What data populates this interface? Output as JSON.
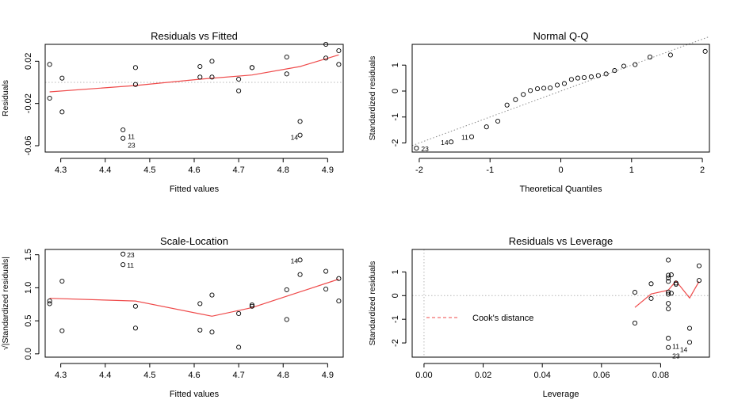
{
  "chart_data": [
    {
      "type": "scatter",
      "title": "Residuals vs Fitted",
      "xlabel": "Fitted values",
      "ylabel": "Residuals",
      "xlim": [
        4.265,
        4.935
      ],
      "ylim": [
        -0.066,
        0.036
      ],
      "xticks": [
        "4.3",
        "4.4",
        "4.5",
        "4.6",
        "4.7",
        "4.8",
        "4.9"
      ],
      "yticks": [
        "-0.06",
        "-0.02",
        "0.02"
      ],
      "points": [
        [
          4.275,
          0.017
        ],
        [
          4.275,
          -0.015
        ],
        [
          4.303,
          0.004
        ],
        [
          4.303,
          -0.028
        ],
        [
          4.44,
          -0.045
        ],
        [
          4.44,
          -0.053
        ],
        [
          4.468,
          0.014
        ],
        [
          4.468,
          -0.002
        ],
        [
          4.613,
          0.015
        ],
        [
          4.613,
          0.005
        ],
        [
          4.64,
          0.02
        ],
        [
          4.64,
          0.005
        ],
        [
          4.7,
          0.003
        ],
        [
          4.7,
          -0.008
        ],
        [
          4.73,
          0.014
        ],
        [
          4.73,
          0.014
        ],
        [
          4.808,
          0.024
        ],
        [
          4.808,
          0.008
        ],
        [
          4.838,
          -0.037
        ],
        [
          4.838,
          -0.05
        ],
        [
          4.896,
          0.036
        ],
        [
          4.896,
          0.023
        ],
        [
          4.925,
          0.03
        ],
        [
          4.925,
          0.017
        ]
      ],
      "labels": [
        {
          "text": "11",
          "x": 4.44,
          "y": -0.053
        },
        {
          "text": "23",
          "x": 4.44,
          "y": -0.053
        },
        {
          "text": "14",
          "x": 4.838,
          "y": -0.05
        }
      ],
      "smooth": [
        [
          4.275,
          -0.009
        ],
        [
          4.468,
          -0.003
        ],
        [
          4.613,
          0.003
        ],
        [
          4.73,
          0.007
        ],
        [
          4.838,
          0.015
        ],
        [
          4.925,
          0.026
        ]
      ],
      "reference_line": 0
    },
    {
      "type": "scatter",
      "title": "Normal Q-Q",
      "xlabel": "Theoretical Quantiles",
      "ylabel": "Standardized residuals",
      "xlim": [
        -2.1,
        2.1
      ],
      "ylim": [
        -2.35,
        1.8
      ],
      "xticks": [
        "-2",
        "-1",
        "0",
        "1",
        "2"
      ],
      "yticks": [
        "-2",
        "-1",
        "0",
        "1"
      ],
      "points": [
        [
          -2.04,
          -2.2
        ],
        [
          -1.55,
          -1.96
        ],
        [
          -1.26,
          -1.76
        ],
        [
          -1.05,
          -1.38
        ],
        [
          -0.89,
          -1.16
        ],
        [
          -0.76,
          -0.54
        ],
        [
          -0.64,
          -0.33
        ],
        [
          -0.53,
          -0.13
        ],
        [
          -0.43,
          0.02
        ],
        [
          -0.33,
          0.09
        ],
        [
          -0.24,
          0.11
        ],
        [
          -0.15,
          0.12
        ],
        [
          -0.05,
          0.23
        ],
        [
          0.05,
          0.29
        ],
        [
          0.15,
          0.45
        ],
        [
          0.24,
          0.5
        ],
        [
          0.33,
          0.52
        ],
        [
          0.43,
          0.55
        ],
        [
          0.53,
          0.6
        ],
        [
          0.64,
          0.66
        ],
        [
          0.76,
          0.79
        ],
        [
          0.89,
          0.96
        ],
        [
          1.05,
          1.02
        ],
        [
          1.26,
          1.31
        ],
        [
          1.55,
          1.39
        ],
        [
          2.04,
          1.53
        ]
      ],
      "labels": [
        {
          "text": "23",
          "x": -2.04,
          "y": -2.2
        },
        {
          "text": "14",
          "x": -1.55,
          "y": -1.96
        },
        {
          "text": "11",
          "x": -1.26,
          "y": -1.76
        }
      ],
      "reference_line": {
        "intercept": 0,
        "slope": 1
      }
    },
    {
      "type": "scatter",
      "title": "Scale-Location",
      "xlabel": "Fitted values",
      "ylabel": "√|Standardized residuals|",
      "xlim": [
        4.265,
        4.935
      ],
      "ylim": [
        -0.05,
        1.58
      ],
      "xticks": [
        "4.3",
        "4.4",
        "4.5",
        "4.6",
        "4.7",
        "4.8",
        "4.9"
      ],
      "yticks": [
        "0.0",
        "0.5",
        "1.0",
        "1.5"
      ],
      "points": [
        [
          4.275,
          0.8
        ],
        [
          4.275,
          0.76
        ],
        [
          4.303,
          1.1
        ],
        [
          4.303,
          0.35
        ],
        [
          4.44,
          1.51
        ],
        [
          4.44,
          1.35
        ],
        [
          4.468,
          0.72
        ],
        [
          4.468,
          0.39
        ],
        [
          4.613,
          0.76
        ],
        [
          4.613,
          0.36
        ],
        [
          4.64,
          0.89
        ],
        [
          4.64,
          0.33
        ],
        [
          4.7,
          0.61
        ],
        [
          4.7,
          0.1
        ],
        [
          4.73,
          0.74
        ],
        [
          4.73,
          0.72
        ],
        [
          4.808,
          0.97
        ],
        [
          4.808,
          0.52
        ],
        [
          4.838,
          1.42
        ],
        [
          4.838,
          1.2
        ],
        [
          4.896,
          1.25
        ],
        [
          4.896,
          0.98
        ],
        [
          4.925,
          1.14
        ],
        [
          4.925,
          0.8
        ]
      ],
      "labels": [
        {
          "text": "23",
          "x": 4.44,
          "y": 1.51
        },
        {
          "text": "11",
          "x": 4.44,
          "y": 1.35
        },
        {
          "text": "14",
          "x": 4.838,
          "y": 1.42
        }
      ],
      "smooth": [
        [
          4.275,
          0.84
        ],
        [
          4.468,
          0.8
        ],
        [
          4.64,
          0.57
        ],
        [
          4.73,
          0.7
        ],
        [
          4.925,
          1.13
        ]
      ]
    },
    {
      "type": "scatter",
      "title": "Residuals vs Leverage",
      "xlabel": "Leverage",
      "ylabel": "Standardized residuals",
      "xlim": [
        -0.004,
        0.0965
      ],
      "ylim": [
        -2.6,
        1.95
      ],
      "xticks": [
        "0.00",
        "0.02",
        "0.04",
        "0.06",
        "0.08"
      ],
      "yticks": [
        "-2",
        "-1",
        "0",
        "1"
      ],
      "legend": {
        "label": "Cook's distance",
        "position": "left"
      },
      "points": [
        [
          0.0713,
          0.14
        ],
        [
          0.0713,
          -1.16
        ],
        [
          0.0768,
          0.5
        ],
        [
          0.0768,
          -0.12
        ],
        [
          0.0826,
          1.5
        ],
        [
          0.0826,
          0.86
        ],
        [
          0.0826,
          0.74
        ],
        [
          0.0826,
          0.6
        ],
        [
          0.0826,
          0.15
        ],
        [
          0.0826,
          0.06
        ],
        [
          0.0826,
          -0.33
        ],
        [
          0.0826,
          -0.56
        ],
        [
          0.0826,
          -1.8
        ],
        [
          0.0826,
          -2.19
        ],
        [
          0.0836,
          0.88
        ],
        [
          0.0836,
          0.1
        ],
        [
          0.0852,
          0.53
        ],
        [
          0.0852,
          0.48
        ],
        [
          0.0898,
          -1.38
        ],
        [
          0.0898,
          -1.97
        ],
        [
          0.093,
          1.26
        ],
        [
          0.093,
          0.64
        ]
      ],
      "labels": [
        {
          "text": "11",
          "x": 0.0826,
          "y": -2.19
        },
        {
          "text": "14",
          "x": 0.0852,
          "y": -2.25
        },
        {
          "text": "23",
          "x": 0.0826,
          "y": -2.45
        }
      ],
      "smooth": [
        [
          0.0713,
          -0.5
        ],
        [
          0.0768,
          0.07
        ],
        [
          0.0826,
          0.23
        ],
        [
          0.0852,
          0.62
        ],
        [
          0.0898,
          -0.1
        ],
        [
          0.093,
          0.6
        ]
      ],
      "reference_line": 0
    }
  ]
}
